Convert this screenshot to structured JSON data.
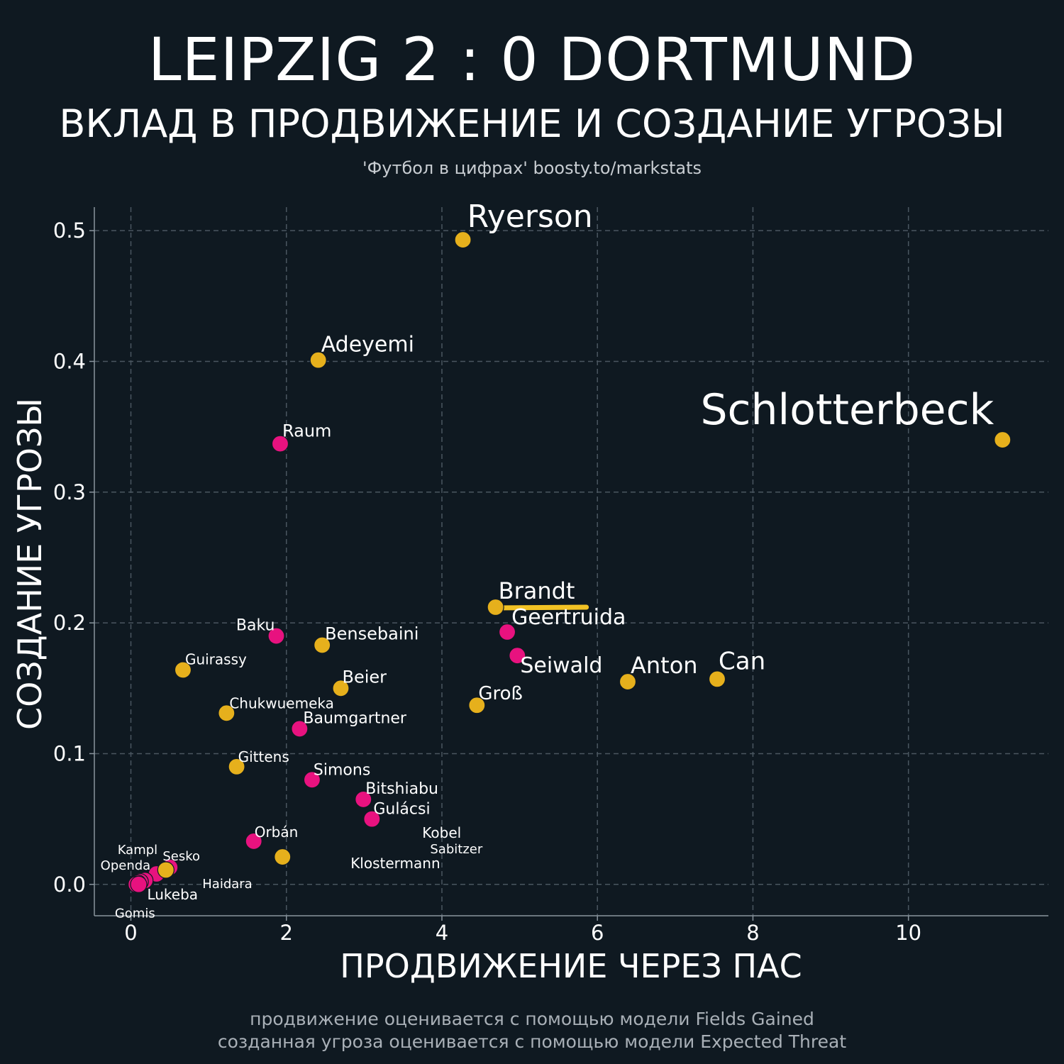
{
  "header": {
    "title": "LEIPZIG 2 : 0 DORTMUND",
    "subtitle": "ВКЛАД В ПРОДВИЖЕНИЕ И СОЗДАНИЕ УГРОЗЫ",
    "credit": "'Футбол в цифрах' boosty.to/markstats"
  },
  "footer": {
    "note1": "продвижение оценивается с помощью модели Fields Gained",
    "note2": "созданная угроза оценивается с помощью модели Expected Threat"
  },
  "colors": {
    "background": "#0f1921",
    "leipzig": "#e8127f",
    "dortmund": "#e6b01c",
    "grid": "#4a5660",
    "axis": "#8a959e",
    "text": "#ffffff"
  },
  "chart_data": {
    "type": "scatter",
    "xlabel": "ПРОДВИЖЕНИЕ ЧЕРЕЗ ПАС",
    "ylabel": "СОЗДАНИЕ УГРОЗЫ",
    "xlim": [
      -0.47,
      11.8
    ],
    "ylim": [
      -0.024,
      0.518
    ],
    "xticks": [
      0,
      2,
      4,
      6,
      8,
      10
    ],
    "yticks": [
      0.0,
      0.1,
      0.2,
      0.3,
      0.4,
      0.5
    ],
    "grid": true,
    "series": [
      {
        "team": "Dortmund",
        "color": "#e6b01c",
        "points": [
          {
            "name": "Ryerson",
            "x": 4.27,
            "y": 0.493
          },
          {
            "name": "Adeyemi",
            "x": 2.41,
            "y": 0.401
          },
          {
            "name": "Schlotterbeck",
            "x": 11.21,
            "y": 0.34
          },
          {
            "name": "Brandt",
            "x": 4.69,
            "y": 0.212
          },
          {
            "name": "Bensebaini",
            "x": 2.46,
            "y": 0.183
          },
          {
            "name": "Guirassy",
            "x": 0.67,
            "y": 0.164
          },
          {
            "name": "Anton",
            "x": 6.39,
            "y": 0.155
          },
          {
            "name": "Can",
            "x": 7.54,
            "y": 0.157
          },
          {
            "name": "Beier",
            "x": 2.7,
            "y": 0.15
          },
          {
            "name": "Groß",
            "x": 4.45,
            "y": 0.137
          },
          {
            "name": "Chukwuemeka",
            "x": 1.23,
            "y": 0.131
          },
          {
            "name": "Gittens",
            "x": 1.36,
            "y": 0.09
          },
          {
            "name": "Kobel",
            "x": 1.95,
            "y": 0.021
          },
          {
            "name": "Gomis",
            "x": 0.45,
            "y": 0.011
          }
        ]
      },
      {
        "team": "Leipzig",
        "color": "#e8127f",
        "points": [
          {
            "name": "Raum",
            "x": 1.92,
            "y": 0.337
          },
          {
            "name": "Geertruida",
            "x": 4.84,
            "y": 0.193
          },
          {
            "name": "Baku",
            "x": 1.87,
            "y": 0.19
          },
          {
            "name": "Seiwald",
            "x": 4.97,
            "y": 0.175
          },
          {
            "name": "Baumgartner",
            "x": 2.17,
            "y": 0.119
          },
          {
            "name": "Simons",
            "x": 2.33,
            "y": 0.08
          },
          {
            "name": "Bitshiabu",
            "x": 2.99,
            "y": 0.065
          },
          {
            "name": "Gulácsi",
            "x": 3.1,
            "y": 0.05
          },
          {
            "name": "Orbán",
            "x": 1.58,
            "y": 0.033
          },
          {
            "name": "Sesko",
            "x": 0.5,
            "y": 0.013
          },
          {
            "name": "Kampl",
            "x": 0.33,
            "y": 0.008
          },
          {
            "name": "Haidara",
            "x": 0.18,
            "y": 0.003
          },
          {
            "name": "Openda",
            "x": 0.12,
            "y": 0.002
          },
          {
            "name": "Sabitzer",
            "x": 0.09,
            "y": 0.001
          },
          {
            "name": "Klostermann",
            "x": 0.07,
            "y": 0.0
          },
          {
            "name": "Lukeba",
            "x": 0.1,
            "y": 0.0
          }
        ]
      }
    ]
  }
}
